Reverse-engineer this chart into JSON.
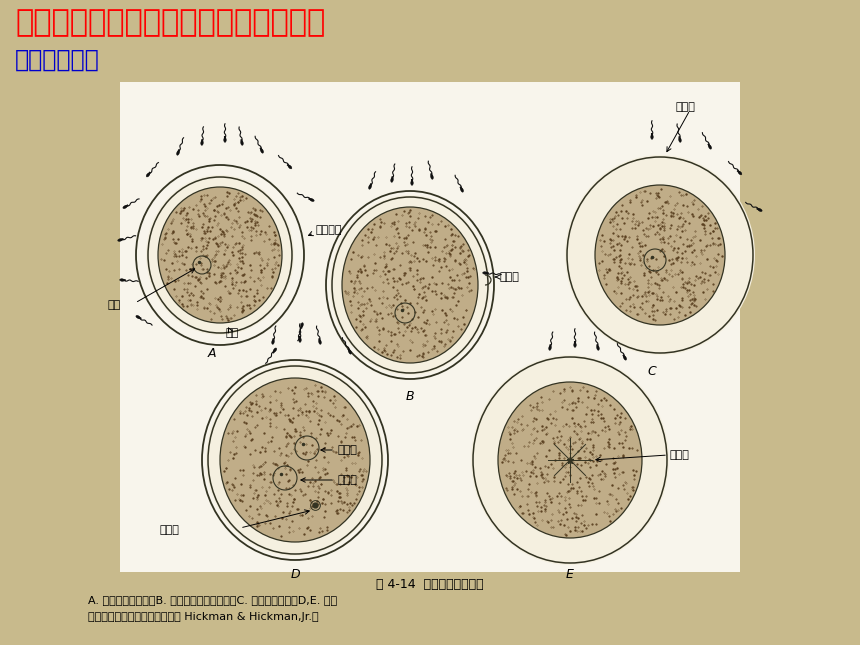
{
  "title1": "一．卵细胞的极性、卵裂的形式和体腔",
  "title2": "受精与受精卵",
  "title1_color": "#FF0000",
  "title2_color": "#0000CC",
  "bg_color": "#C8BA8C",
  "slide_bg": "#F0ECD8",
  "caption_title": "图 4-14  卵子的受精作用：",
  "caption_body1": "A. 被精子包围的卵；B. 精子进入卵的胶层膜；C. 受精锥之形成；D,E. 精子",
  "caption_body2": "附着于卵及卵黄膜的形成。（仿 Hickman & Hickman,Jr.）",
  "egg_fill": "#C0AD88",
  "egg_stipple": "#5A4020",
  "egg_edge": "#333322",
  "white_gap": "#F5F0E0"
}
